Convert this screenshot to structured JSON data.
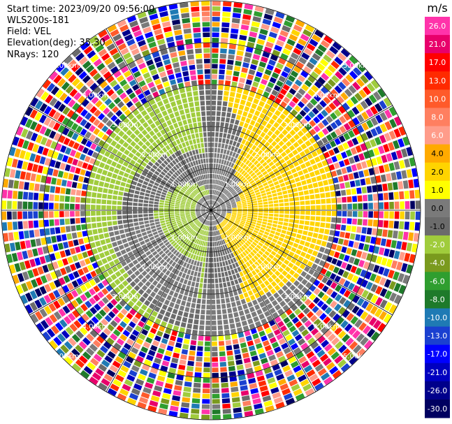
{
  "header": {
    "start_time": "Start time: 2023/09/20 09:56:00",
    "instrument": "WLS200s-181",
    "field": "Field: VEL",
    "elevation": "Elevation(deg): 35.30",
    "nrays": "NRays: 120"
  },
  "chart_data": {
    "type": "heatmap",
    "subtype": "polar-ppi",
    "field": "VEL",
    "units": "m/s",
    "nrays": 120,
    "elevation_deg": 35.3,
    "max_range_km": 5.0,
    "grid": true,
    "range_ring_labels": [
      "1.00km",
      "2.00km",
      "3.00km",
      "4.00km",
      "5.00km"
    ],
    "legend": {
      "position": "right",
      "unit_label": "m/s",
      "ticks": [
        "26.0",
        "21.0",
        "17.0",
        "13.0",
        "10.0",
        "8.0",
        "6.0",
        "4.0",
        "2.0",
        "1.0",
        "0.0",
        "-1.0",
        "-2.0",
        "-4.0",
        "-6.0",
        "-8.0",
        "-10.0",
        "-13.0",
        "-17.0",
        "-21.0",
        "-26.0",
        "-30.0"
      ],
      "colors": [
        "#ff33aa",
        "#e8006b",
        "#ff0000",
        "#ff2a00",
        "#ff5a2a",
        "#ff7f60",
        "#ff9c8a",
        "#ffaa00",
        "#ffd400",
        "#ffff00",
        "#7a7a7a",
        "#6b6b6b",
        "#a0cc3c",
        "#7a9a1e",
        "#2f9e2f",
        "#1e7a2a",
        "#1f7ab4",
        "#1a40d0",
        "#0000ff",
        "#0000c0",
        "#00008b",
        "#000060"
      ]
    }
  }
}
